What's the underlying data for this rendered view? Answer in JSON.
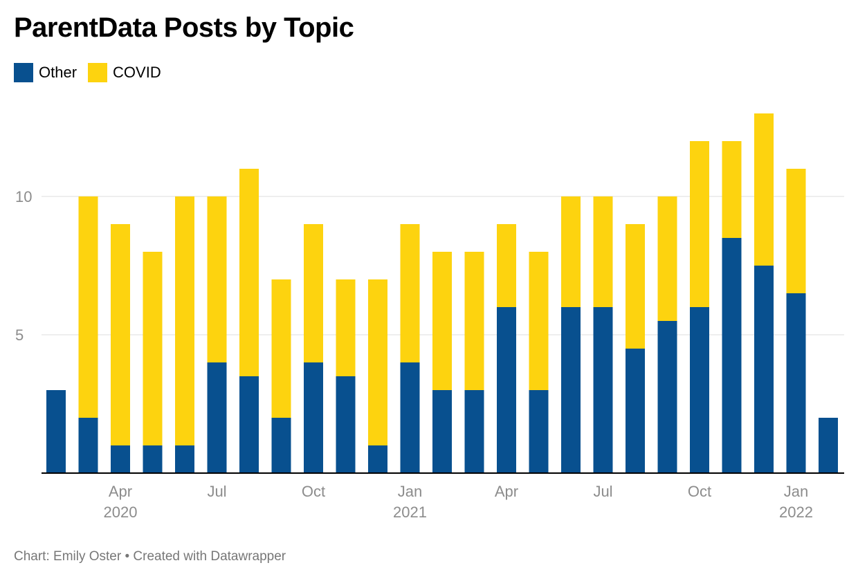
{
  "title": "ParentData Posts by Topic",
  "footer": "Chart: Emily Oster • Created with Datawrapper",
  "colors": {
    "other": "#08508F",
    "covid": "#FDD30F"
  },
  "chart_data": {
    "type": "bar",
    "stacked": true,
    "title": "ParentData Posts by Topic",
    "categories": [
      "2020-02",
      "2020-03",
      "2020-04",
      "2020-05",
      "2020-06",
      "2020-07",
      "2020-08",
      "2020-09",
      "2020-10",
      "2020-11",
      "2020-12",
      "2021-01",
      "2021-02",
      "2021-03",
      "2021-04",
      "2021-05",
      "2021-06",
      "2021-07",
      "2021-08",
      "2021-09",
      "2021-10",
      "2021-11",
      "2021-12",
      "2022-01",
      "2022-02"
    ],
    "series": [
      {
        "name": "Other",
        "color": "#08508F",
        "values": [
          3,
          2,
          1,
          1,
          1,
          4,
          3.5,
          2,
          4,
          3.5,
          1,
          4,
          3,
          3,
          6,
          3,
          6,
          6,
          4.5,
          5.5,
          6,
          8.5,
          7.5,
          6.5,
          2
        ]
      },
      {
        "name": "COVID",
        "color": "#FDD30F",
        "values": [
          0,
          8,
          8,
          7,
          9,
          6,
          7.5,
          5,
          5,
          3.5,
          6,
          5,
          5,
          5,
          3,
          5,
          4,
          4,
          4.5,
          4.5,
          6,
          3.5,
          5.5,
          4.5,
          0
        ]
      }
    ],
    "ylim": [
      0,
      13
    ],
    "yticks": [
      5,
      10
    ],
    "grid": true,
    "legend": "top-left",
    "xticks": [
      {
        "month": "Apr",
        "year": "2020",
        "category_index": 2
      },
      {
        "month": "Jul",
        "year": "",
        "category_index": 5
      },
      {
        "month": "Oct",
        "year": "",
        "category_index": 8
      },
      {
        "month": "Jan",
        "year": "2021",
        "category_index": 11
      },
      {
        "month": "Apr",
        "year": "",
        "category_index": 14
      },
      {
        "month": "Jul",
        "year": "",
        "category_index": 17
      },
      {
        "month": "Oct",
        "year": "",
        "category_index": 20
      },
      {
        "month": "Jan",
        "year": "2022",
        "category_index": 23
      }
    ]
  }
}
